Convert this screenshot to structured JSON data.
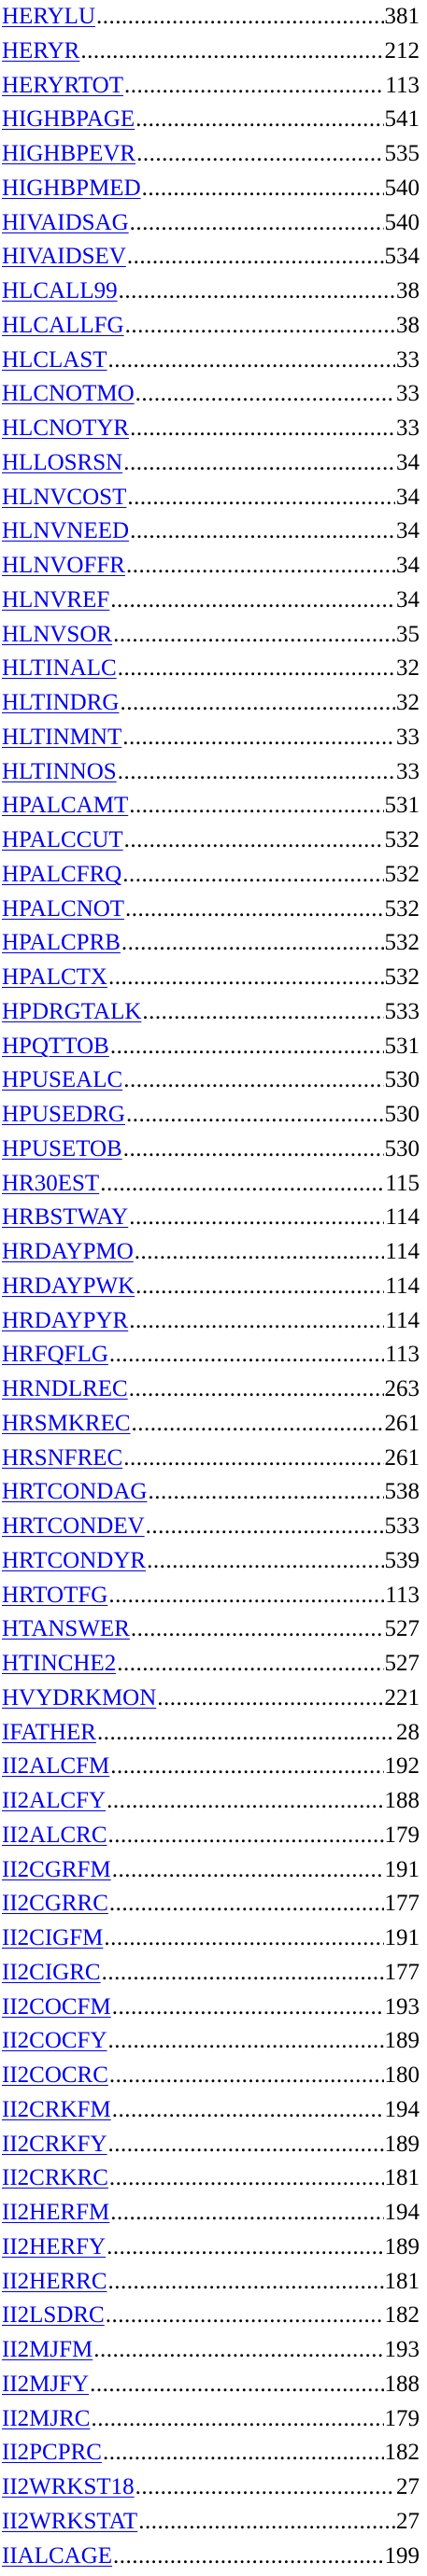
{
  "index": {
    "entries": [
      {
        "term": "HERYLU",
        "page": "381"
      },
      {
        "term": "HERYR",
        "page": "212"
      },
      {
        "term": "HERYRTOT",
        "page": "113"
      },
      {
        "term": "HIGHBPAGE",
        "page": "541"
      },
      {
        "term": "HIGHBPEVR",
        "page": "535"
      },
      {
        "term": "HIGHBPMED",
        "page": "540"
      },
      {
        "term": "HIVAIDSAG",
        "page": "540"
      },
      {
        "term": "HIVAIDSEV",
        "page": "534"
      },
      {
        "term": "HLCALL99",
        "page": "38"
      },
      {
        "term": "HLCALLFG",
        "page": "38"
      },
      {
        "term": "HLCLAST",
        "page": "33"
      },
      {
        "term": "HLCNOTMO",
        "page": "33"
      },
      {
        "term": "HLCNOTYR",
        "page": "33"
      },
      {
        "term": "HLLOSRSN",
        "page": "34"
      },
      {
        "term": "HLNVCOST",
        "page": "34"
      },
      {
        "term": "HLNVNEED",
        "page": "34"
      },
      {
        "term": "HLNVOFFR",
        "page": "34"
      },
      {
        "term": "HLNVREF",
        "page": "34"
      },
      {
        "term": "HLNVSOR",
        "page": "35"
      },
      {
        "term": "HLTINALC",
        "page": "32"
      },
      {
        "term": "HLTINDRG",
        "page": "32"
      },
      {
        "term": "HLTINMNT",
        "page": "33"
      },
      {
        "term": "HLTINNOS",
        "page": "33"
      },
      {
        "term": "HPALCAMT",
        "page": "531"
      },
      {
        "term": "HPALCCUT",
        "page": "532"
      },
      {
        "term": "HPALCFRQ",
        "page": "532"
      },
      {
        "term": "HPALCNOT",
        "page": "532"
      },
      {
        "term": "HPALCPRB",
        "page": "532"
      },
      {
        "term": "HPALCTX",
        "page": "532"
      },
      {
        "term": "HPDRGTALK",
        "page": "533"
      },
      {
        "term": "HPQTTOB",
        "page": "531"
      },
      {
        "term": "HPUSEALC",
        "page": "530"
      },
      {
        "term": "HPUSEDRG",
        "page": "530"
      },
      {
        "term": "HPUSETOB",
        "page": "530"
      },
      {
        "term": "HR30EST",
        "page": "115"
      },
      {
        "term": "HRBSTWAY",
        "page": "114"
      },
      {
        "term": "HRDAYPMO",
        "page": "114"
      },
      {
        "term": "HRDAYPWK",
        "page": "114"
      },
      {
        "term": "HRDAYPYR",
        "page": "114"
      },
      {
        "term": "HRFQFLG",
        "page": "113"
      },
      {
        "term": "HRNDLREC",
        "page": "263"
      },
      {
        "term": "HRSMKREC",
        "page": "261"
      },
      {
        "term": "HRSNFREC",
        "page": "261"
      },
      {
        "term": "HRTCONDAG",
        "page": "538"
      },
      {
        "term": "HRTCONDEV",
        "page": "533"
      },
      {
        "term": "HRTCONDYR",
        "page": "539"
      },
      {
        "term": "HRTOTFG",
        "page": "113"
      },
      {
        "term": "HTANSWER",
        "page": "527"
      },
      {
        "term": "HTINCHE2",
        "page": "527"
      },
      {
        "term": "HVYDRKMON",
        "page": "221"
      },
      {
        "term": "IFATHER",
        "page": "28"
      },
      {
        "term": "II2ALCFM",
        "page": "192"
      },
      {
        "term": "II2ALCFY",
        "page": "188"
      },
      {
        "term": "II2ALCRC",
        "page": "179"
      },
      {
        "term": "II2CGRFM",
        "page": "191"
      },
      {
        "term": "II2CGRRC",
        "page": "177"
      },
      {
        "term": "II2CIGFM",
        "page": "191"
      },
      {
        "term": "II2CIGRC",
        "page": "177"
      },
      {
        "term": "II2COCFM",
        "page": "193"
      },
      {
        "term": "II2COCFY",
        "page": "189"
      },
      {
        "term": "II2COCRC",
        "page": "180"
      },
      {
        "term": "II2CRKFM",
        "page": "194"
      },
      {
        "term": "II2CRKFY",
        "page": "189"
      },
      {
        "term": "II2CRKRC",
        "page": "181"
      },
      {
        "term": "II2HERFM",
        "page": "194"
      },
      {
        "term": "II2HERFY",
        "page": "189"
      },
      {
        "term": "II2HERRC",
        "page": "181"
      },
      {
        "term": "II2LSDRC",
        "page": "182"
      },
      {
        "term": "II2MJFM",
        "page": "193"
      },
      {
        "term": "II2MJFY",
        "page": "188"
      },
      {
        "term": "II2MJRC",
        "page": "179"
      },
      {
        "term": "II2PCPRC",
        "page": "182"
      },
      {
        "term": "II2WRKST18",
        "page": "27"
      },
      {
        "term": "II2WRKSTAT",
        "page": "27"
      },
      {
        "term": "IIALCAGE",
        "page": "199"
      }
    ]
  },
  "colors": {
    "link": "#0000EE",
    "text": "#000000",
    "background": "#FFFFFF"
  }
}
